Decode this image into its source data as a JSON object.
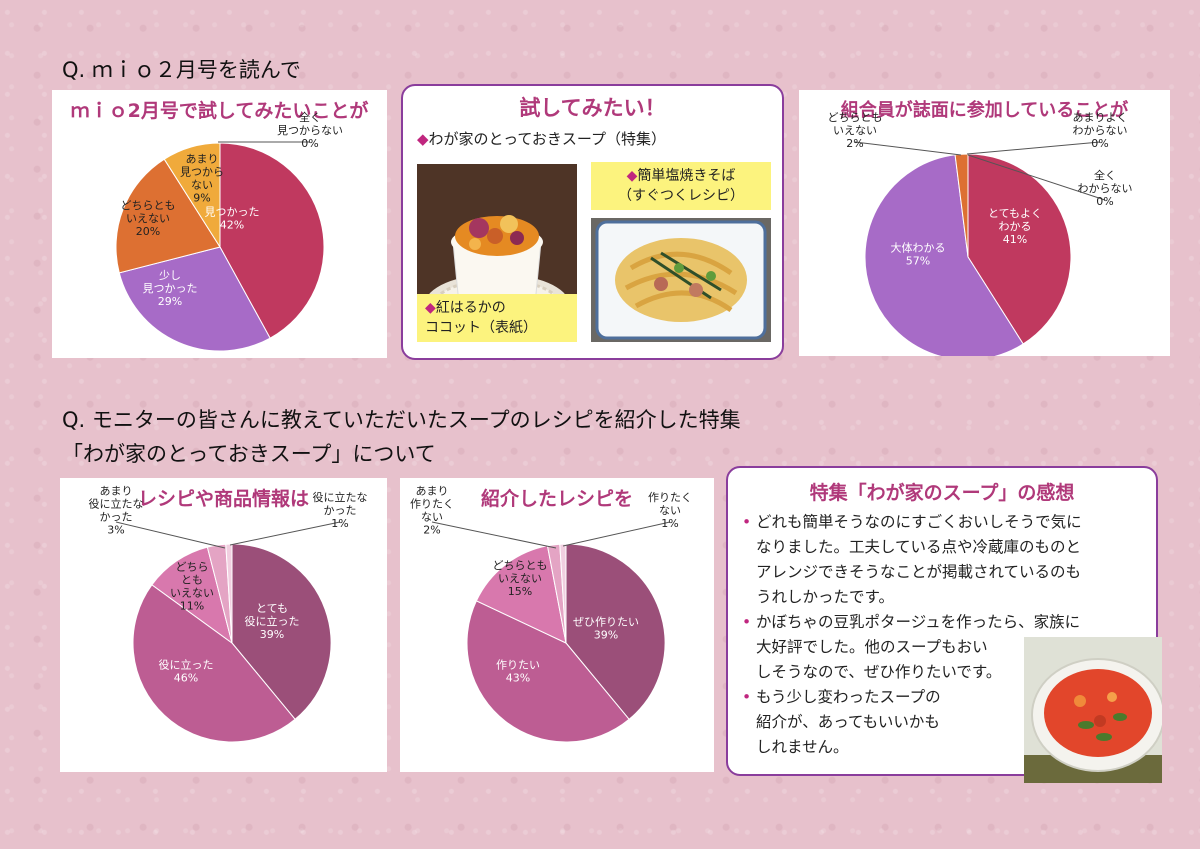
{
  "page": {
    "q1": "Q. ｍｉｏ２月号を読んで",
    "q2_line1": "Q. モニターの皆さんに教えていただいたスープのレシピを紹介した特集",
    "q2_line2": "「わが家のとっておきスープ」について"
  },
  "try_panel": {
    "title": "試してみたい！",
    "subtitle": "わが家のとっておきスープ（特集）",
    "diamond": "◆",
    "recipe1_line1": "紅はるかの",
    "recipe1_line2": "ココット（表紙）",
    "recipe2_line1": "簡単塩焼きそば",
    "recipe2_line2": "（すぐつくレシピ）"
  },
  "comment_panel": {
    "title": "特集「わが家のスープ」の感想",
    "bullet": "•",
    "comments": [
      [
        "どれも簡単そうなのにすごくおいしそうで気に",
        "なりました。工夫している点や冷蔵庫のものと",
        "アレンジできそうなことが掲載されているのも",
        "うれしかったです。"
      ],
      [
        "かぼちゃの豆乳ポタージュを作ったら、家族に",
        "大好評でした。他のスープもおい",
        "しそうなので、ぜひ作りたいです。"
      ],
      [
        "もう少し変わったスープの",
        "紹介が、あってもいいかも",
        "しれません。"
      ]
    ]
  },
  "chart_data": [
    {
      "type": "pie",
      "title": "ｍｉｏ2月号で試してみたいことが",
      "title_color": "#b0397a",
      "slices": [
        {
          "label": [
            "見つかった"
          ],
          "value": 42,
          "pct": "42%",
          "color": "#c0395f",
          "label_color": "#ffffff"
        },
        {
          "label": [
            "少し",
            "見つかった"
          ],
          "value": 29,
          "pct": "29%",
          "color": "#a76bc7",
          "label_color": "#ffffff"
        },
        {
          "label": [
            "どちらとも",
            "いえない"
          ],
          "value": 20,
          "pct": "20%",
          "color": "#dd7032",
          "label_color": "#222222"
        },
        {
          "label": [
            "あまり",
            "見つから",
            "ない"
          ],
          "value": 9,
          "pct": "9%",
          "color": "#f0aa3b",
          "label_color": "#222222"
        },
        {
          "label": [
            "全く",
            "見つからない"
          ],
          "value": 0,
          "pct": "0%",
          "color": "#d9d9d9",
          "label_color": "#222222"
        }
      ]
    },
    {
      "type": "pie",
      "title": "組合員が誌面に参加していることが",
      "title_color": "#b0397a",
      "slices": [
        {
          "label": [
            "とてもよく",
            "わかる"
          ],
          "value": 41,
          "pct": "41%",
          "color": "#c0395f",
          "label_color": "#ffffff"
        },
        {
          "label": [
            "大体わかる"
          ],
          "value": 57,
          "pct": "57%",
          "color": "#a76bc7",
          "label_color": "#ffffff"
        },
        {
          "label": [
            "どちらとも",
            "いえない"
          ],
          "value": 2,
          "pct": "2%",
          "color": "#dd7032",
          "label_color": "#222222"
        },
        {
          "label": [
            "あまりよく",
            "わからない"
          ],
          "value": 0,
          "pct": "0%",
          "color": "#f0aa3b",
          "label_color": "#222222"
        },
        {
          "label": [
            "全く",
            "わからない"
          ],
          "value": 0,
          "pct": "0%",
          "color": "#d9d9d9",
          "label_color": "#222222"
        }
      ]
    },
    {
      "type": "pie",
      "title": "レシピや商品情報は",
      "title_color": "#b0397a",
      "slices": [
        {
          "label": [
            "とても",
            "役に立った"
          ],
          "value": 39,
          "pct": "39%",
          "color": "#9b4f79",
          "label_color": "#ffffff"
        },
        {
          "label": [
            "役に立った"
          ],
          "value": 46,
          "pct": "46%",
          "color": "#bd5d93",
          "label_color": "#ffffff"
        },
        {
          "label": [
            "どちら",
            "とも",
            "いえない"
          ],
          "value": 11,
          "pct": "11%",
          "color": "#d878ad",
          "label_color": "#222222"
        },
        {
          "label": [
            "あまり",
            "役に立たな",
            "かった"
          ],
          "value": 3,
          "pct": "3%",
          "color": "#e4a4c4",
          "label_color": "#222222"
        },
        {
          "label": [
            "役に立たな",
            "かった"
          ],
          "value": 1,
          "pct": "1%",
          "color": "#f1cfe0",
          "label_color": "#222222"
        }
      ]
    },
    {
      "type": "pie",
      "title": "紹介したレシピを",
      "title_color": "#b0397a",
      "slices": [
        {
          "label": [
            "ぜひ作りたい"
          ],
          "value": 39,
          "pct": "39%",
          "color": "#9b4f79",
          "label_color": "#ffffff"
        },
        {
          "label": [
            "作りたい"
          ],
          "value": 43,
          "pct": "43%",
          "color": "#bd5d93",
          "label_color": "#ffffff"
        },
        {
          "label": [
            "どちらとも",
            "いえない"
          ],
          "value": 15,
          "pct": "15%",
          "color": "#d878ad",
          "label_color": "#222222"
        },
        {
          "label": [
            "あまり",
            "作りたく",
            "ない"
          ],
          "value": 2,
          "pct": "2%",
          "color": "#e4a4c4",
          "label_color": "#222222"
        },
        {
          "label": [
            "作りたく",
            "ない"
          ],
          "value": 1,
          "pct": "1%",
          "color": "#f1cfe0",
          "label_color": "#222222"
        }
      ]
    }
  ]
}
